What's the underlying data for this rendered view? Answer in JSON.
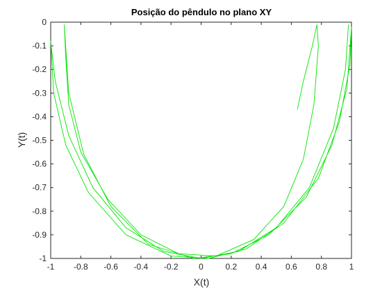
{
  "chart_data": {
    "type": "line",
    "title": "Posição do pêndulo no plano XY",
    "xlabel": "X(t)",
    "ylabel": "Y(t)",
    "x": [
      0.98,
      0.96,
      0.88,
      0.72,
      0.5,
      0.25,
      0,
      -0.25,
      -0.5,
      -0.72,
      -0.88,
      -0.97,
      -1,
      -0.98,
      -0.9,
      -0.75,
      -0.5,
      -0.2,
      0.05,
      0.3,
      0.55,
      0.78,
      0.92,
      0.99,
      1,
      0.97,
      0.87,
      0.7,
      0.45,
      0.2,
      -0.05,
      -0.35,
      -0.6,
      -0.78,
      -0.88,
      -0.91,
      -0.9,
      -0.88,
      -0.8,
      -0.62,
      -0.4,
      -0.15,
      0.1,
      0.35,
      0.55,
      0.68,
      0.75,
      0.78,
      0.77,
      0.74,
      0.68,
      0.64
    ],
    "values": [
      -0.01,
      -0.2,
      -0.45,
      -0.7,
      -0.87,
      -0.97,
      -1,
      -0.97,
      -0.87,
      -0.7,
      -0.48,
      -0.25,
      -0.08,
      -0.3,
      -0.52,
      -0.72,
      -0.9,
      -0.99,
      -1,
      -0.96,
      -0.85,
      -0.66,
      -0.42,
      -0.18,
      -0.02,
      -0.28,
      -0.52,
      -0.74,
      -0.9,
      -0.98,
      -1,
      -0.94,
      -0.78,
      -0.56,
      -0.3,
      -0.01,
      -0.15,
      -0.35,
      -0.55,
      -0.75,
      -0.9,
      -0.98,
      -0.99,
      -0.92,
      -0.78,
      -0.58,
      -0.35,
      -0.1,
      -0.01,
      -0.1,
      -0.25,
      -0.37
    ],
    "color": "#00e600",
    "xlim": [
      -1,
      1
    ],
    "xticks": [
      -1,
      -0.8,
      -0.6,
      -0.4,
      -0.2,
      0,
      0.2,
      0.4,
      0.6,
      0.8,
      1
    ],
    "ylim": [
      -1,
      0
    ],
    "yticks": [
      0,
      -0.1,
      -0.2,
      -0.3,
      -0.4,
      -0.5,
      -0.6,
      -0.7,
      -0.8,
      -0.9,
      -1
    ],
    "grid": false
  }
}
